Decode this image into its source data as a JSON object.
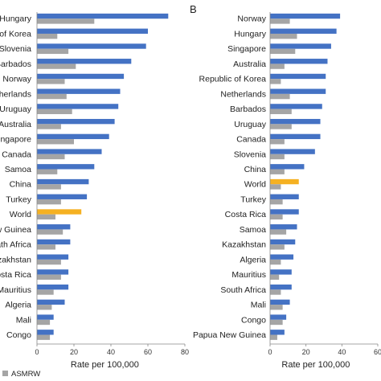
{
  "chart_data": [
    {
      "type": "bar",
      "orientation": "horizontal",
      "panel_label": "",
      "categories": [
        "Hungary",
        "of Korea",
        "Slovenia",
        "Barbados",
        "Norway",
        "Netherlands",
        "Uruguay",
        "Australia",
        "Singapore",
        "Canada",
        "Samoa",
        "China",
        "Turkey",
        "World",
        "w Guinea",
        "ath Africa",
        "azakhstan",
        "osta Rica",
        "Mauritius",
        "Algeria",
        "Mali",
        "Congo"
      ],
      "highlight_category": "World",
      "series": [
        {
          "name": "",
          "color": "#4472C4",
          "values": [
            71,
            60,
            59,
            51,
            47,
            45,
            44,
            42,
            39,
            35,
            31,
            28,
            27,
            24,
            18,
            18,
            17,
            17,
            17,
            15,
            9,
            9
          ]
        },
        {
          "name": "ASMRW",
          "color": "#A5A5A5",
          "values": [
            31,
            11,
            17,
            21,
            15,
            16,
            19,
            13,
            20,
            15,
            11,
            13,
            13,
            10,
            14,
            10,
            13,
            13,
            9,
            8,
            7,
            7
          ]
        }
      ],
      "highlight_color": "#F5B122",
      "xlabel": "Rate per 100,000",
      "ylabel": "",
      "xlim": [
        0,
        80
      ],
      "xticks": [
        0,
        20,
        40,
        60,
        80
      ]
    },
    {
      "type": "bar",
      "orientation": "horizontal",
      "panel_label": "B",
      "categories": [
        "Norway",
        "Hungary",
        "Singapore",
        "Australia",
        "Republic of Korea",
        "Netherlands",
        "Barbados",
        "Uruguay",
        "Canada",
        "Slovenia",
        "China",
        "World",
        "Turkey",
        "Costa Rica",
        "Samoa",
        "Kazakhstan",
        "Algeria",
        "Mauritius",
        "South Africa",
        "Mali",
        "Congo",
        "Papua New Guinea"
      ],
      "highlight_category": "World",
      "series": [
        {
          "name": "",
          "color": "#4472C4",
          "values": [
            39,
            37,
            34,
            32,
            31,
            31,
            29,
            28,
            28,
            25,
            19,
            16,
            16,
            16,
            15,
            14,
            13,
            12,
            12,
            11,
            9,
            8
          ]
        },
        {
          "name": "ASMRW",
          "color": "#A5A5A5",
          "values": [
            11,
            15,
            14,
            8,
            6,
            11,
            12,
            12,
            8,
            8,
            8,
            6,
            7,
            7,
            9,
            8,
            6,
            5,
            6,
            7,
            7,
            4
          ]
        }
      ],
      "highlight_color": "#F5B122",
      "xlabel": "Rate per 100,000",
      "ylabel": "",
      "xlim": [
        0,
        60
      ],
      "xticks": [
        0,
        20,
        40,
        60
      ]
    }
  ],
  "legend": {
    "label": "ASMRW",
    "color": "#A5A5A5"
  }
}
